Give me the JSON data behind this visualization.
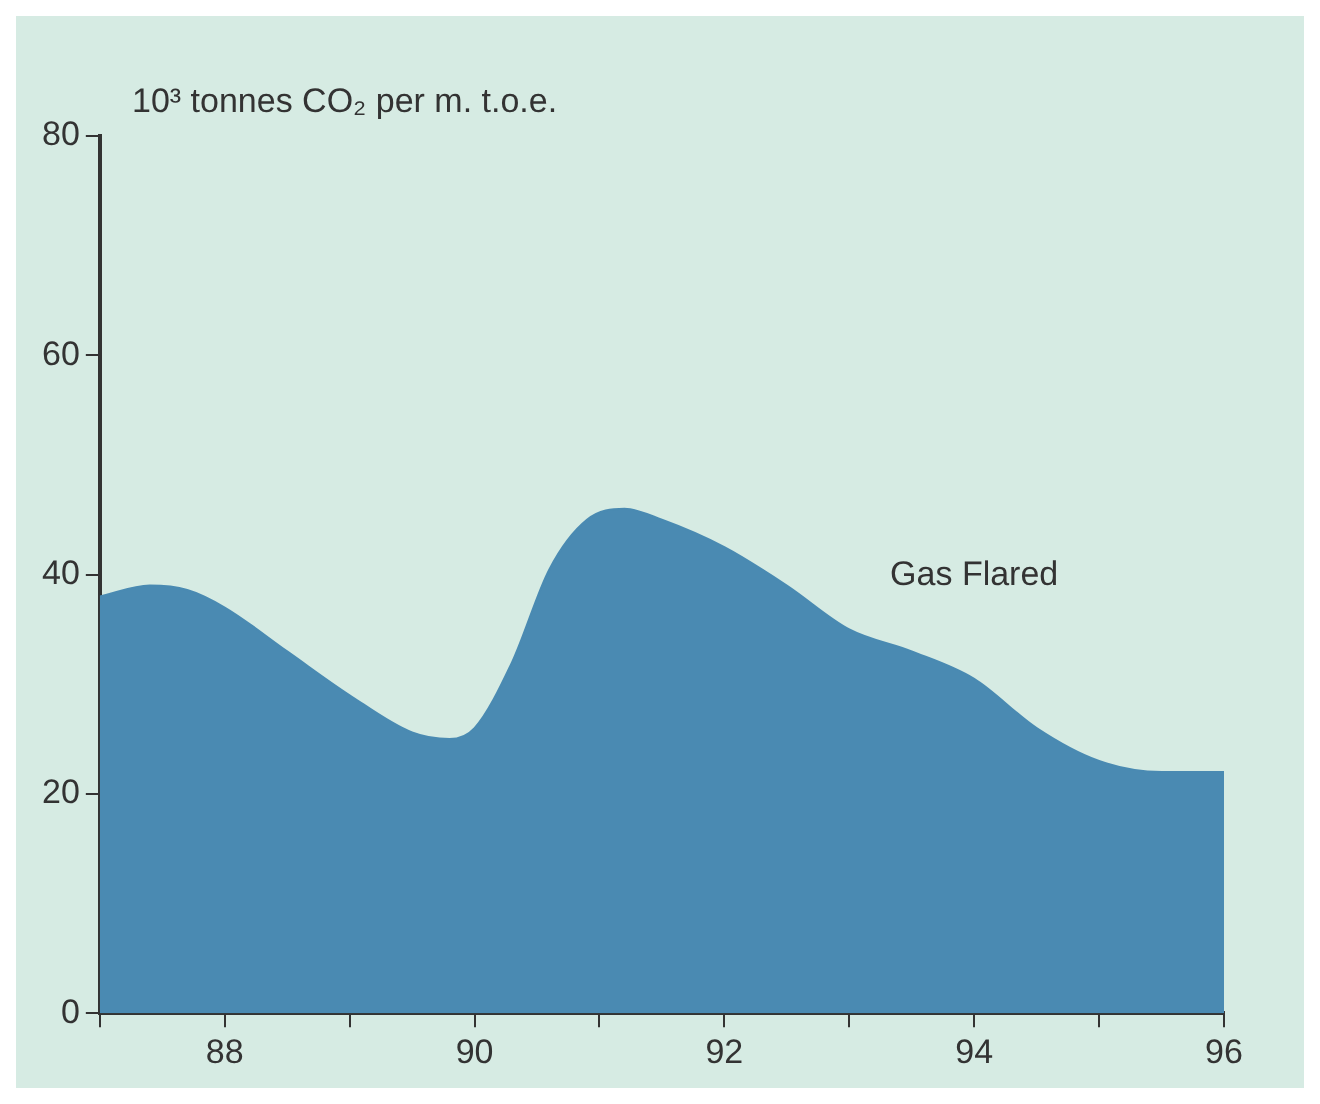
{
  "chart_data": {
    "type": "area",
    "ylabel": "10³ tonnes CO₂ per m. t.o.e.",
    "series": [
      {
        "name": "Gas Flared",
        "color": "#4a8ab2",
        "x": [
          87,
          87.4,
          87.7,
          88,
          88.5,
          89,
          89.5,
          89.8,
          90,
          90.3,
          90.6,
          90.9,
          91.2,
          91.5,
          92,
          92.5,
          93,
          93.5,
          94,
          94.5,
          95,
          95.5,
          96
        ],
        "values": [
          38,
          39,
          38.6,
          37,
          33,
          29,
          25.6,
          25,
          26,
          32,
          40.5,
          45,
          46,
          45,
          42.5,
          39,
          35,
          33,
          30.5,
          26,
          23,
          22,
          22
        ]
      }
    ],
    "xlim": [
      87,
      96
    ],
    "xticks": [
      {
        "value": 87,
        "label": null
      },
      88,
      {
        "value": 89,
        "label": null
      },
      90,
      {
        "value": 91,
        "label": null
      },
      92,
      {
        "value": 93,
        "label": null
      },
      94,
      {
        "value": 95,
        "label": null
      },
      96
    ],
    "ylim": [
      0,
      80
    ],
    "yticks": [
      0,
      20,
      40,
      60,
      80
    ],
    "grid": false,
    "legend": false
  }
}
